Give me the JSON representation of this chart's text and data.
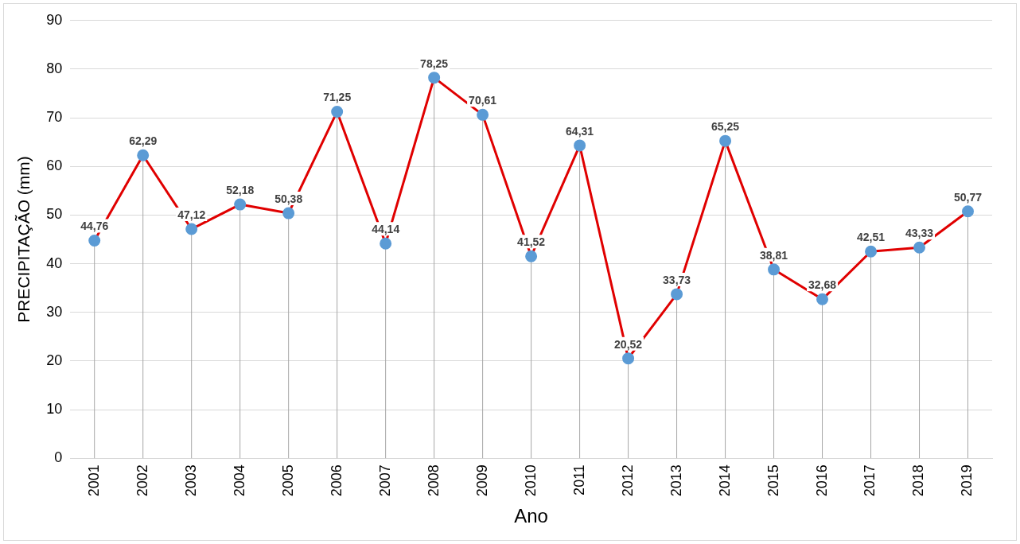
{
  "chart_data": {
    "type": "line",
    "xlabel": "Ano",
    "ylabel": "PRECIPITAÇÃO (mm)",
    "categories": [
      "2001",
      "2002",
      "2003",
      "2004",
      "2005",
      "2006",
      "2007",
      "2008",
      "2009",
      "2010",
      "2011",
      "2012",
      "2013",
      "2014",
      "2015",
      "2016",
      "2017",
      "2018",
      "2019"
    ],
    "series": [
      {
        "color": "#e00000",
        "values": [
          44.76,
          62.29,
          47.12,
          52.18,
          50.38,
          71.25,
          44.14,
          78.25,
          70.61,
          41.52,
          64.31,
          20.52,
          33.73,
          65.25,
          38.81,
          32.68,
          42.51,
          43.33,
          50.77
        ],
        "value_labels": [
          "44,76",
          "62,29",
          "47,12",
          "52,18",
          "50,38",
          "71,25",
          "44,14",
          "78,25",
          "70,61",
          "41,52",
          "64,31",
          "20,52",
          "33,73",
          "65,25",
          "38,81",
          "32,68",
          "42,51",
          "43,33",
          "50,77"
        ],
        "colors": [
          "#5b9bd5",
          "#5b9bd5",
          "#5b9bd5",
          "#5b9bd5",
          "#5b9bd5",
          "#5b9bd5",
          "#5b9bd5",
          "#5b9bd5",
          "#5b9bd5",
          "#5b9bd5",
          "#5b9bd5",
          "#5b9bd5",
          "#5b9bd5",
          "#5b9bd5",
          "#5b9bd5",
          "#5b9bd5",
          "#5b9bd5",
          "#5b9bd5",
          "#5b9bd5"
        ]
      }
    ],
    "ylim": [
      0,
      90
    ],
    "yticks": [
      0,
      10,
      20,
      30,
      40,
      50,
      60,
      70,
      80,
      90
    ],
    "grid": true,
    "legend": false,
    "marker": "circle",
    "line_style": "solid"
  }
}
